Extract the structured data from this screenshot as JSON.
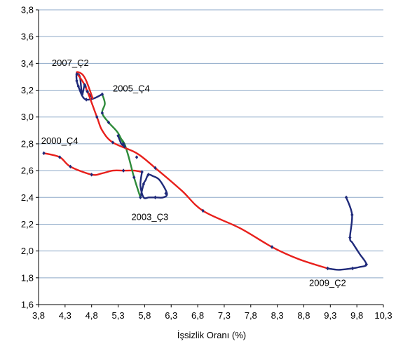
{
  "chart_data": {
    "type": "line",
    "title": "",
    "xlabel": "İşsizlik Oranı (%)",
    "ylabel": "",
    "xlim": [
      3.8,
      10.3
    ],
    "ylim": [
      1.6,
      3.8
    ],
    "x_ticks": [
      "3,8",
      "4,3",
      "4,8",
      "5,3",
      "5,8",
      "6,3",
      "6,8",
      "7,3",
      "7,8",
      "8,3",
      "8,8",
      "9,3",
      "9,8",
      "10,3"
    ],
    "y_ticks": [
      "1,6",
      "1,8",
      "2,0",
      "2,2",
      "2,4",
      "2,6",
      "2,8",
      "3,0",
      "3,2",
      "3,4",
      "3,6",
      "3,8"
    ],
    "grid": "horizontal",
    "colors": {
      "grid": "#8ea9c8",
      "marker_series": "#1f2a7a"
    },
    "segments": [
      {
        "color": "#e8201c",
        "x": [
          3.9,
          4.2,
          4.4,
          4.8,
          5.0,
          5.2,
          5.4,
          5.6,
          5.75
        ],
        "y": [
          2.73,
          2.7,
          2.63,
          2.57,
          2.58,
          2.6,
          2.6,
          2.6,
          2.59
        ]
      },
      {
        "color": "#1f2a7a",
        "x": [
          5.75,
          5.72,
          5.78,
          5.88,
          6.0,
          6.15,
          6.22,
          6.08,
          5.95,
          5.87,
          5.82,
          5.78,
          5.72
        ],
        "y": [
          2.59,
          2.49,
          2.4,
          2.4,
          2.4,
          2.4,
          2.43,
          2.53,
          2.56,
          2.57,
          2.53,
          2.5,
          2.4
        ]
      },
      {
        "color": "#2e8b3a",
        "x": [
          5.72,
          5.6,
          5.5,
          5.42,
          5.35,
          5.3
        ],
        "y": [
          2.4,
          2.55,
          2.7,
          2.8,
          2.84,
          2.86
        ]
      },
      {
        "color": "#1f2a7a",
        "x": [
          5.3,
          5.36,
          5.42
        ],
        "y": [
          2.86,
          2.8,
          2.78
        ]
      },
      {
        "color": "#2e8b3a",
        "x": [
          5.42,
          5.3,
          5.12,
          5.0,
          5.05,
          5.0
        ],
        "y": [
          2.78,
          2.88,
          2.96,
          3.03,
          3.1,
          3.17
        ]
      },
      {
        "color": "#1f2a7a",
        "x": [
          5.0,
          4.85,
          4.7,
          4.62,
          4.55,
          4.52,
          4.52,
          4.58,
          4.62,
          4.67,
          4.72,
          4.82
        ],
        "y": [
          3.17,
          3.14,
          3.13,
          3.16,
          3.23,
          3.27,
          3.32,
          3.3,
          3.17,
          3.24,
          3.19,
          3.14
        ]
      },
      {
        "color": "#e8201c",
        "x": [
          4.82,
          4.7,
          4.62,
          4.52,
          4.68,
          4.9,
          5.0,
          5.2,
          5.65,
          6.0,
          6.5,
          6.9,
          7.6,
          8.2,
          8.7,
          9.25
        ],
        "y": [
          3.14,
          3.27,
          3.32,
          3.33,
          3.23,
          3.0,
          2.9,
          2.81,
          2.73,
          2.62,
          2.45,
          2.3,
          2.17,
          2.03,
          1.94,
          1.87
        ]
      },
      {
        "color": "#1f2a7a",
        "x": [
          9.25,
          9.45,
          9.7,
          9.85,
          9.98,
          9.85,
          9.72,
          9.67,
          9.71,
          9.6
        ],
        "y": [
          1.87,
          1.86,
          1.87,
          1.88,
          1.9,
          1.98,
          2.06,
          2.1,
          2.27,
          2.4
        ]
      }
    ],
    "points": [
      {
        "x": 3.9,
        "y": 2.73
      },
      {
        "x": 4.2,
        "y": 2.7
      },
      {
        "x": 4.4,
        "y": 2.63
      },
      {
        "x": 4.8,
        "y": 2.57
      },
      {
        "x": 5.4,
        "y": 2.6
      },
      {
        "x": 5.75,
        "y": 2.59
      },
      {
        "x": 5.72,
        "y": 2.4
      },
      {
        "x": 6.0,
        "y": 2.4
      },
      {
        "x": 6.2,
        "y": 2.43
      },
      {
        "x": 5.87,
        "y": 2.57
      },
      {
        "x": 5.78,
        "y": 2.5
      },
      {
        "x": 5.6,
        "y": 2.55
      },
      {
        "x": 5.3,
        "y": 2.86
      },
      {
        "x": 5.42,
        "y": 2.78
      },
      {
        "x": 5.12,
        "y": 2.96
      },
      {
        "x": 5.0,
        "y": 3.03
      },
      {
        "x": 5.0,
        "y": 3.17
      },
      {
        "x": 4.7,
        "y": 3.13
      },
      {
        "x": 4.55,
        "y": 3.23
      },
      {
        "x": 4.52,
        "y": 3.27
      },
      {
        "x": 4.52,
        "y": 3.32
      },
      {
        "x": 4.62,
        "y": 3.17
      },
      {
        "x": 4.67,
        "y": 3.24
      },
      {
        "x": 4.72,
        "y": 3.19
      },
      {
        "x": 4.68,
        "y": 3.23
      },
      {
        "x": 4.9,
        "y": 3.0
      },
      {
        "x": 5.2,
        "y": 2.81
      },
      {
        "x": 5.4,
        "y": 2.8
      },
      {
        "x": 5.65,
        "y": 2.7
      },
      {
        "x": 6.0,
        "y": 2.62
      },
      {
        "x": 6.9,
        "y": 2.3
      },
      {
        "x": 8.2,
        "y": 2.03
      },
      {
        "x": 9.25,
        "y": 1.87
      },
      {
        "x": 9.72,
        "y": 1.87
      },
      {
        "x": 9.98,
        "y": 1.9
      },
      {
        "x": 9.67,
        "y": 2.1
      },
      {
        "x": 9.71,
        "y": 2.27
      },
      {
        "x": 9.6,
        "y": 2.4
      }
    ],
    "annotations": [
      {
        "text": "2007_Ç2",
        "x": 4.05,
        "y": 3.38
      },
      {
        "text": "2005_Ç4",
        "x": 5.2,
        "y": 3.19
      },
      {
        "text": "2000_Ç4",
        "x": 3.85,
        "y": 2.8
      },
      {
        "text": "2003_Ç3",
        "x": 5.55,
        "y": 2.23
      },
      {
        "text": "2009_Ç2",
        "x": 8.9,
        "y": 1.74
      }
    ]
  }
}
